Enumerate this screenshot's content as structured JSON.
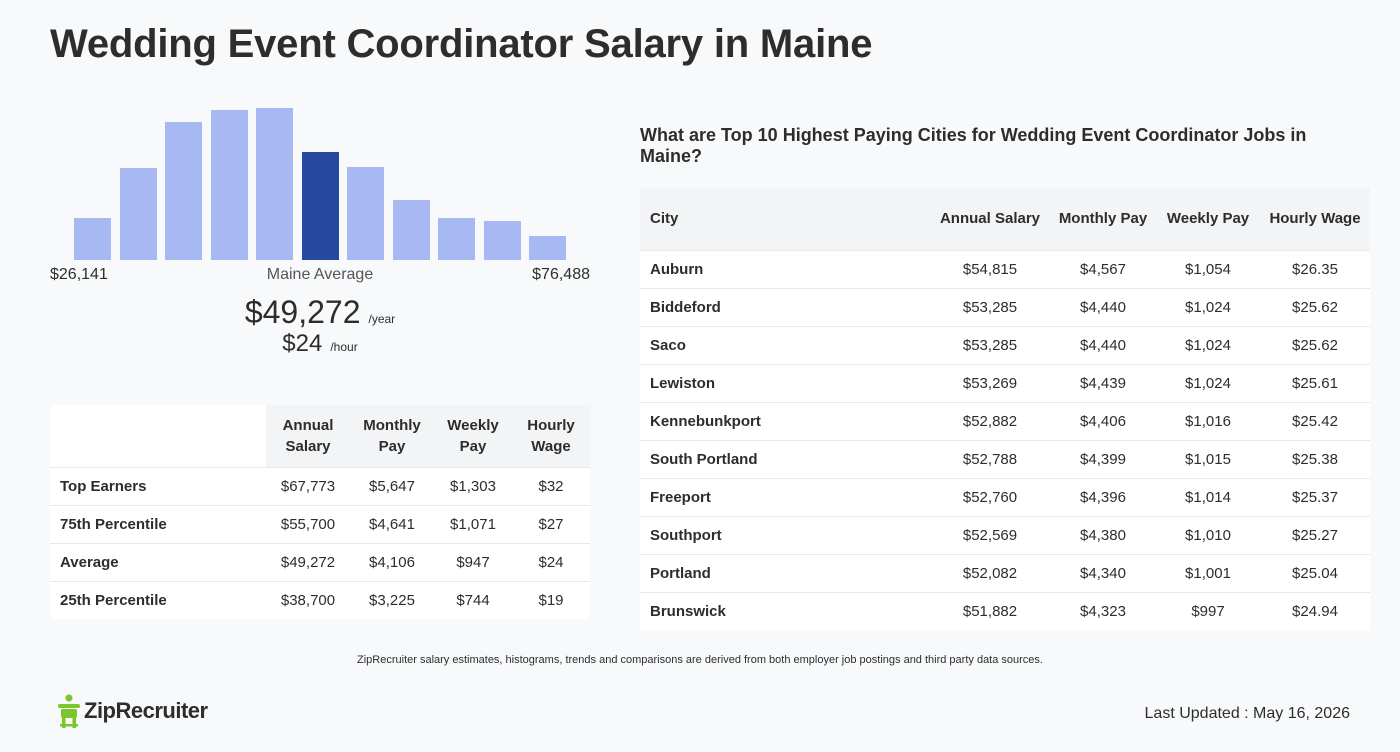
{
  "page": {
    "title": "Wedding Event Coordinator Salary in Maine"
  },
  "chart_data": {
    "type": "bar",
    "categories": [
      "1",
      "2",
      "3",
      "4",
      "5",
      "6",
      "7",
      "8",
      "9",
      "10",
      "11"
    ],
    "values": [
      42,
      92,
      138,
      150,
      152,
      108,
      93,
      60,
      42,
      39,
      24
    ],
    "highlight_index": 5,
    "colors": {
      "bar": "#a8b8f0",
      "highlight": "#2649a0"
    },
    "ylim": [
      0,
      160
    ]
  },
  "summary": {
    "min": "$26,141",
    "max": "$76,488",
    "avg_label": "Maine Average",
    "annual": "$49,272",
    "annual_unit": "/year",
    "hourly": "$24",
    "hourly_unit": "/hour"
  },
  "percentile_table": {
    "headers": [
      "Annual Salary",
      "Monthly Pay",
      "Weekly Pay",
      "Hourly Wage"
    ],
    "rows": [
      {
        "label": "Top Earners",
        "annual": "$67,773",
        "monthly": "$5,647",
        "weekly": "$1,303",
        "hourly": "$32"
      },
      {
        "label": "75th Percentile",
        "annual": "$55,700",
        "monthly": "$4,641",
        "weekly": "$1,071",
        "hourly": "$27"
      },
      {
        "label": "Average",
        "annual": "$49,272",
        "monthly": "$4,106",
        "weekly": "$947",
        "hourly": "$24"
      },
      {
        "label": "25th Percentile",
        "annual": "$38,700",
        "monthly": "$3,225",
        "weekly": "$744",
        "hourly": "$19"
      }
    ]
  },
  "cities": {
    "heading": "What are Top 10 Highest Paying Cities for Wedding Event Coordinator Jobs in Maine?",
    "headers": [
      "City",
      "Annual Salary",
      "Monthly Pay",
      "Weekly Pay",
      "Hourly Wage"
    ],
    "rows": [
      {
        "city": "Auburn",
        "annual": "$54,815",
        "monthly": "$4,567",
        "weekly": "$1,054",
        "hourly": "$26.35"
      },
      {
        "city": "Biddeford",
        "annual": "$53,285",
        "monthly": "$4,440",
        "weekly": "$1,024",
        "hourly": "$25.62"
      },
      {
        "city": "Saco",
        "annual": "$53,285",
        "monthly": "$4,440",
        "weekly": "$1,024",
        "hourly": "$25.62"
      },
      {
        "city": "Lewiston",
        "annual": "$53,269",
        "monthly": "$4,439",
        "weekly": "$1,024",
        "hourly": "$25.61"
      },
      {
        "city": "Kennebunkport",
        "annual": "$52,882",
        "monthly": "$4,406",
        "weekly": "$1,016",
        "hourly": "$25.42"
      },
      {
        "city": "South Portland",
        "annual": "$52,788",
        "monthly": "$4,399",
        "weekly": "$1,015",
        "hourly": "$25.38"
      },
      {
        "city": "Freeport",
        "annual": "$52,760",
        "monthly": "$4,396",
        "weekly": "$1,014",
        "hourly": "$25.37"
      },
      {
        "city": "Southport",
        "annual": "$52,569",
        "monthly": "$4,380",
        "weekly": "$1,010",
        "hourly": "$25.27"
      },
      {
        "city": "Portland",
        "annual": "$52,082",
        "monthly": "$4,340",
        "weekly": "$1,001",
        "hourly": "$25.04"
      },
      {
        "city": "Brunswick",
        "annual": "$51,882",
        "monthly": "$4,323",
        "weekly": "$997",
        "hourly": "$24.94"
      }
    ]
  },
  "footer": {
    "disclaimer": "ZipRecruiter salary estimates, histograms, trends and comparisons are derived from both employer job postings and third party data sources.",
    "logo_text": "ZipRecruiter",
    "logo_icon": "zip-person-icon",
    "logo_color": "#7bc62d",
    "last_updated": "Last Updated : May 16, 2026"
  }
}
